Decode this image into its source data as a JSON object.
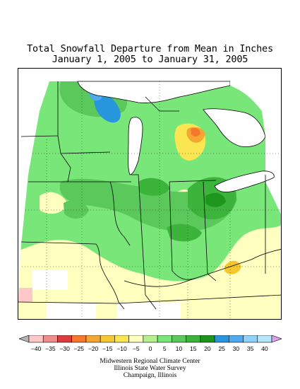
{
  "title": {
    "line1": "Total Snowfall Departure from Mean in Inches",
    "line2": "January 1, 2005 to January 31, 2005"
  },
  "legend": {
    "ticks": [
      "-40",
      "-35",
      "-30",
      "-25",
      "-20",
      "-15",
      "-10",
      "-5",
      "0",
      "5",
      "10",
      "15",
      "20",
      "25",
      "30",
      "35",
      "40"
    ],
    "colors": [
      "#ffc8c8",
      "#f08c8c",
      "#dc3c3c",
      "#f5782d",
      "#f5a532",
      "#f5c832",
      "#fae650",
      "#ffffc0",
      "#b4f08c",
      "#78e678",
      "#5ac85a",
      "#3cb43c",
      "#1e961e",
      "#2896dc",
      "#50aaf0",
      "#8cd2fa",
      "#b4e6fa"
    ],
    "below_color": "#b4b4b4",
    "above_color": "#dca0f0"
  },
  "credits": {
    "line1": "Midwestern Regional Climate Center",
    "line2": "Illinois State Water Survey",
    "line3": "Champaign, Illinois"
  }
}
